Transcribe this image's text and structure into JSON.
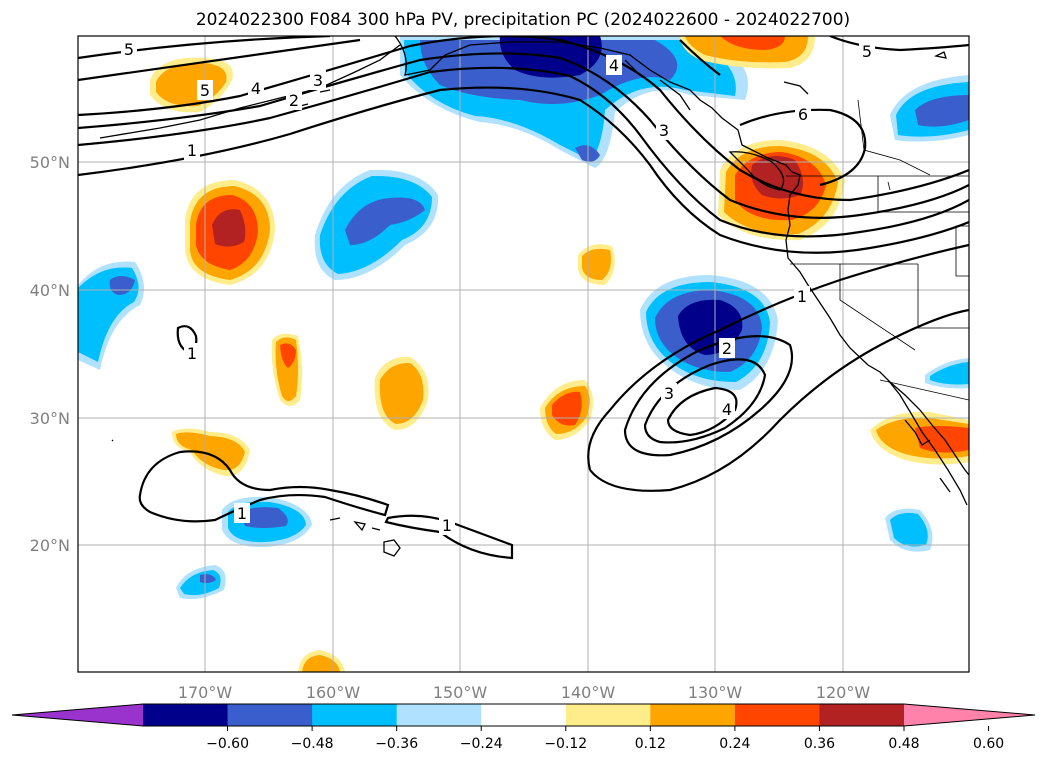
{
  "title": "2024022300 F084 300 hPa PV, precipitation PC (2024022600 - 2024022700)",
  "lon_labels": [
    "170°W",
    "160°W",
    "150°W",
    "140°W",
    "130°W",
    "120°W"
  ],
  "lat_labels": [
    "50°N",
    "40°N",
    "30°N",
    "20°N"
  ],
  "contour_labels": [
    "5",
    "5",
    "4",
    "3",
    "2",
    "1",
    "4",
    "3",
    "6",
    "5",
    "1",
    "2",
    "3",
    "4",
    "1",
    "1",
    "1"
  ],
  "colorbar": {
    "ticks": [
      "−0.60",
      "−0.48",
      "−0.36",
      "−0.24",
      "−0.12",
      "0.12",
      "0.24",
      "0.36",
      "0.48",
      "0.60"
    ],
    "colors": [
      "#9a32cd",
      "#00008b",
      "#3a5fcd",
      "#00bfff",
      "#b0e2ff",
      "#ffffff",
      "#ffec8b",
      "#ffa500",
      "#ff4500",
      "#b22222",
      "#ff82ab"
    ]
  },
  "colors": {
    "neg_strong": "#00008b",
    "neg_mid": "#3a5fcd",
    "neg_light": "#00bfff",
    "neg_faint": "#b0e2ff",
    "pos_faint": "#ffec8b",
    "pos_light": "#ffa500",
    "pos_mid": "#ff4500",
    "pos_strong": "#b22222"
  }
}
